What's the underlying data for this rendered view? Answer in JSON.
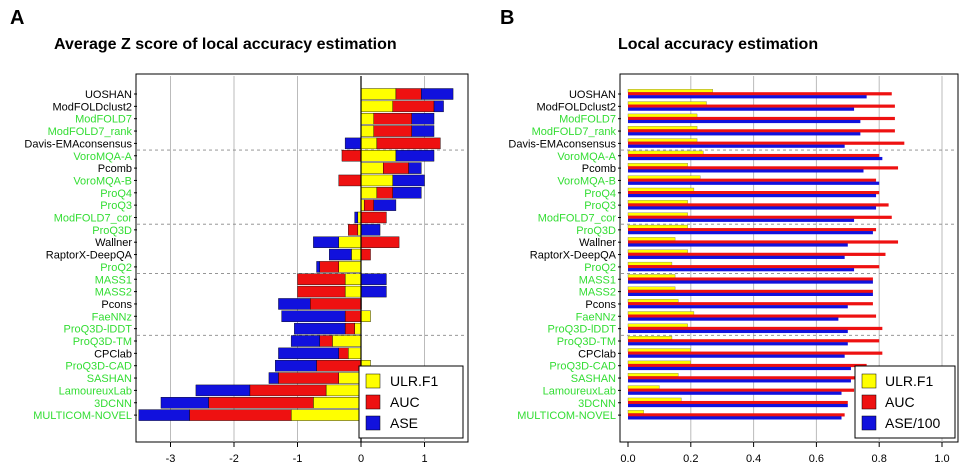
{
  "panels": {
    "A": {
      "letter": "A",
      "title": "Average Z score of local accuracy estimation"
    },
    "B": {
      "letter": "B",
      "title": "Local accuracy estimation"
    }
  },
  "colors": {
    "ULR.F1": "#ffff00",
    "AUC": "#ee1111",
    "ASE": "#1111dd",
    "green_label": "#33dd33",
    "black_label": "#000000"
  },
  "chart_data": [
    {
      "type": "bar",
      "orientation": "horizontal",
      "stacked": true,
      "title": "Average Z score of local accuracy estimation",
      "categories": [
        "UOSHAN",
        "ModFOLDclust2",
        "ModFOLD7",
        "ModFOLD7_rank",
        "Davis-EMAconsensus",
        "VoroMQA-A",
        "Pcomb",
        "VoroMQA-B",
        "ProQ4",
        "ProQ3",
        "ModFOLD7_cor",
        "ProQ3D",
        "Wallner",
        "RaptorX-DeepQA",
        "ProQ2",
        "MASS1",
        "MASS2",
        "Pcons",
        "FaeNNz",
        "ProQ3D-lDDT",
        "ProQ3D-TM",
        "CPClab",
        "ProQ3D-CAD",
        "SASHAN",
        "LamoureuxLab",
        "3DCNN",
        "MULTICOM-NOVEL"
      ],
      "label_colors": [
        "black",
        "black",
        "green",
        "green",
        "black",
        "green",
        "black",
        "green",
        "green",
        "green",
        "green",
        "green",
        "black",
        "black",
        "green",
        "green",
        "green",
        "black",
        "green",
        "green",
        "green",
        "black",
        "green",
        "green",
        "green",
        "green",
        "green"
      ],
      "series": [
        {
          "name": "ULR.F1",
          "values": [
            0.55,
            0.5,
            0.2,
            0.2,
            0.25,
            0.55,
            0.35,
            0.5,
            0.25,
            0.05,
            -0.05,
            -0.05,
            -0.35,
            -0.15,
            -0.35,
            -0.25,
            -0.25,
            0.0,
            0.15,
            -0.1,
            -0.45,
            -0.2,
            0.15,
            -0.35,
            -0.55,
            -0.75,
            -1.1
          ]
        },
        {
          "name": "AUC",
          "values": [
            0.4,
            0.65,
            0.6,
            0.6,
            1.0,
            -0.3,
            0.4,
            -0.35,
            0.25,
            0.15,
            0.4,
            -0.15,
            0.6,
            0.15,
            -0.3,
            -0.75,
            -0.75,
            -0.8,
            -0.25,
            -0.15,
            -0.2,
            -0.15,
            -0.7,
            -0.95,
            -1.2,
            -1.65,
            -1.6
          ]
        },
        {
          "name": "ASE",
          "values": [
            0.5,
            0.15,
            0.35,
            0.35,
            -0.25,
            0.6,
            0.2,
            0.5,
            0.45,
            0.35,
            -0.05,
            0.3,
            -0.4,
            -0.35,
            -0.05,
            0.4,
            0.4,
            -0.5,
            -1.0,
            -0.8,
            -0.45,
            -0.95,
            -0.65,
            -0.15,
            -0.85,
            -0.75,
            -0.8
          ]
        }
      ],
      "xlim": [
        -3.35,
        1.55
      ],
      "xticks": [
        -3,
        -2,
        -1,
        0,
        1
      ],
      "group_separators_after": [
        4,
        10,
        14,
        19
      ],
      "grid": true,
      "legend": {
        "position": "bottom-right",
        "entries": [
          "ULR.F1",
          "AUC",
          "ASE"
        ]
      }
    },
    {
      "type": "bar",
      "orientation": "horizontal",
      "stacked": false,
      "title": "Local accuracy estimation",
      "categories": [
        "UOSHAN",
        "ModFOLDclust2",
        "ModFOLD7",
        "ModFOLD7_rank",
        "Davis-EMAconsensus",
        "VoroMQA-A",
        "Pcomb",
        "VoroMQA-B",
        "ProQ4",
        "ProQ3",
        "ModFOLD7_cor",
        "ProQ3D",
        "Wallner",
        "RaptorX-DeepQA",
        "ProQ2",
        "MASS1",
        "MASS2",
        "Pcons",
        "FaeNNz",
        "ProQ3D-lDDT",
        "ProQ3D-TM",
        "CPClab",
        "ProQ3D-CAD",
        "SASHAN",
        "LamoureuxLab",
        "3DCNN",
        "MULTICOM-NOVEL"
      ],
      "label_colors": [
        "black",
        "black",
        "green",
        "green",
        "black",
        "green",
        "black",
        "green",
        "green",
        "green",
        "green",
        "green",
        "black",
        "black",
        "green",
        "green",
        "green",
        "black",
        "green",
        "green",
        "green",
        "black",
        "green",
        "green",
        "green",
        "green",
        "green"
      ],
      "series": [
        {
          "name": "ULR.F1",
          "values": [
            0.27,
            0.25,
            0.22,
            0.22,
            0.22,
            0.24,
            0.19,
            0.23,
            0.21,
            0.19,
            0.19,
            0.19,
            0.15,
            0.19,
            0.14,
            0.15,
            0.15,
            0.16,
            0.21,
            0.19,
            0.14,
            0.2,
            0.2,
            0.16,
            0.1,
            0.17,
            0.05
          ]
        },
        {
          "name": "AUC",
          "values": [
            0.84,
            0.85,
            0.85,
            0.85,
            0.88,
            0.8,
            0.86,
            0.79,
            0.8,
            0.83,
            0.84,
            0.79,
            0.86,
            0.82,
            0.8,
            0.78,
            0.78,
            0.78,
            0.79,
            0.81,
            0.8,
            0.81,
            0.76,
            0.76,
            0.72,
            0.7,
            0.69
          ]
        },
        {
          "name": "ASE/100",
          "values": [
            0.76,
            0.72,
            0.74,
            0.74,
            0.69,
            0.81,
            0.75,
            0.8,
            0.79,
            0.79,
            0.72,
            0.78,
            0.7,
            0.69,
            0.72,
            0.78,
            0.78,
            0.7,
            0.67,
            0.7,
            0.7,
            0.69,
            0.71,
            0.71,
            0.68,
            0.7,
            0.68
          ]
        }
      ],
      "xlim": [
        0.0,
        1.04
      ],
      "xticks": [
        "0.0",
        "0.2",
        "0.4",
        "0.6",
        "0.8",
        "1.0"
      ],
      "group_separators_after": [
        4,
        10,
        14,
        19
      ],
      "grid": true,
      "legend": {
        "position": "bottom-right",
        "entries": [
          "ULR.F1",
          "AUC",
          "ASE/100"
        ]
      }
    }
  ]
}
